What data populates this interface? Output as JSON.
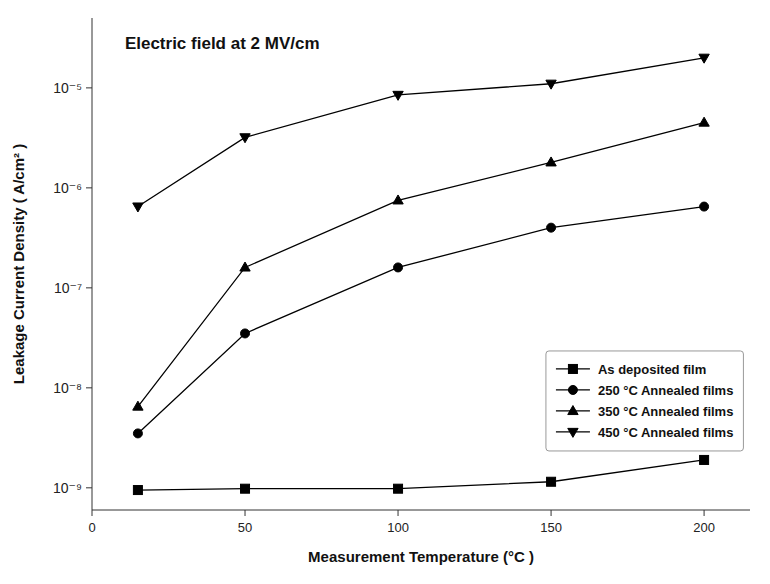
{
  "chart_data": {
    "type": "line",
    "title": "Electric field at 2 MV/cm",
    "x_label": "Measurement Temperature (°C )",
    "y_label": "Leakage Current Density  ( A/cm² )",
    "x": [
      15,
      50,
      100,
      150,
      200
    ],
    "series": [
      {
        "name": "As deposited film",
        "marker": "square",
        "color": "black",
        "values": [
          9.5e-10,
          9.8e-10,
          9.8e-10,
          1.15e-09,
          1.9e-09
        ]
      },
      {
        "name": "250 °C Annealed films",
        "marker": "circle",
        "color": "black",
        "values": [
          3.5e-09,
          3.5e-08,
          1.6e-07,
          4e-07,
          6.5e-07
        ]
      },
      {
        "name": "350 °C Annealed films",
        "marker": "triangle-up",
        "color": "black",
        "values": [
          6.5e-09,
          1.6e-07,
          7.5e-07,
          1.8e-06,
          4.5e-06
        ]
      },
      {
        "name": "450 °C Annealed films",
        "marker": "triangle-down",
        "color": "black",
        "values": [
          6.5e-07,
          3.2e-06,
          8.5e-06,
          1.1e-05,
          2e-05
        ]
      }
    ],
    "xlim": [
      0,
      215
    ],
    "ylim": [
      6e-10,
      5e-05
    ],
    "xticks": [
      0,
      50,
      100,
      150,
      200
    ],
    "yticks": [
      {
        "value": 1e-09,
        "label": "10⁻⁹"
      },
      {
        "value": 1e-08,
        "label": "10⁻⁸"
      },
      {
        "value": 1e-07,
        "label": "10⁻⁷"
      },
      {
        "value": 1e-06,
        "label": "10⁻⁶"
      },
      {
        "value": 1e-05,
        "label": "10⁻⁵"
      }
    ],
    "log": "y",
    "grid": false,
    "legend": "lower right"
  }
}
